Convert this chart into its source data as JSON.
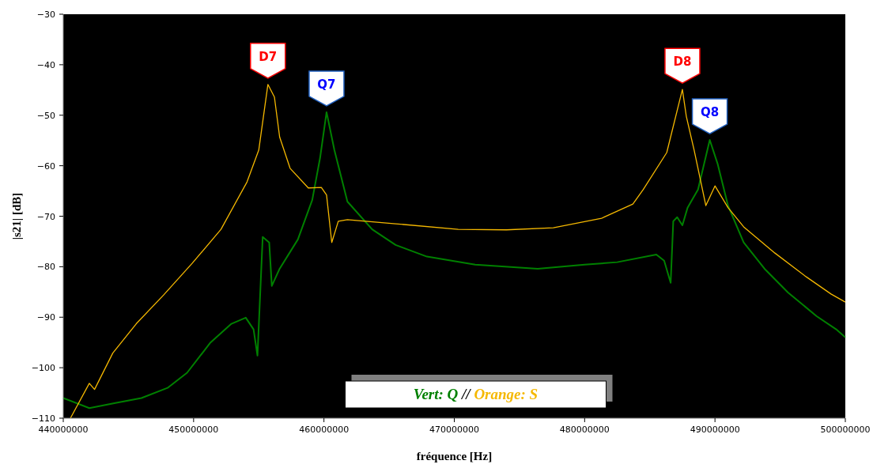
{
  "chart_data": {
    "type": "line",
    "xlabel": "fréquence [Hz]",
    "ylabel": "|s21| [dB]",
    "xlim": [
      440000000,
      500000000
    ],
    "ylim": [
      -110,
      -30
    ],
    "xticks": [
      440000000,
      450000000,
      460000000,
      470000000,
      480000000,
      490000000,
      500000000
    ],
    "yticks": [
      -110,
      -100,
      -90,
      -80,
      -70,
      -60,
      -50,
      -40,
      -30
    ],
    "grid": false,
    "legend": "bottom",
    "line_style": "solid",
    "series": [
      {
        "name": "Vert: Q",
        "color": "#008000",
        "x": [
          440000000,
          442000000,
          444000000,
          446000000,
          448000000,
          449500000,
          451300000,
          452900000,
          454000000,
          454600000,
          454900000,
          455300000,
          455800000,
          456000000,
          456600000,
          458000000,
          459100000,
          459700000,
          460200000,
          460800000,
          461800000,
          463700000,
          465500000,
          467900000,
          471600000,
          476400000,
          480000000,
          482500000,
          485500000,
          486100000,
          486600000,
          486800000,
          487100000,
          487500000,
          487900000,
          488700000,
          489600000,
          490200000,
          491000000,
          492200000,
          493800000,
          495600000,
          497800000,
          499300000,
          500000000
        ],
        "values": [
          -106,
          -108,
          -107,
          -106,
          -104,
          -101,
          -95,
          -91.3,
          -90.1,
          -92.4,
          -97.6,
          -74.1,
          -75.2,
          -83.8,
          -80.4,
          -74.6,
          -66.8,
          -58.5,
          -49.4,
          -56.9,
          -67.1,
          -72.6,
          -75.7,
          -78,
          -79.6,
          -80.4,
          -79.6,
          -79.1,
          -77.6,
          -78.8,
          -83.2,
          -71,
          -70.2,
          -71.8,
          -68.3,
          -64.7,
          -54.9,
          -59.6,
          -67.9,
          -75.2,
          -80.4,
          -85.1,
          -89.8,
          -92.4,
          -94
        ]
      },
      {
        "name": "Orange: S",
        "color": "#f5b800",
        "x": [
          440550000,
          442000000,
          442400000,
          443800000,
          445600000,
          447700000,
          449900000,
          452100000,
          454100000,
          455000000,
          455700000,
          456200000,
          456600000,
          457400000,
          458800000,
          459800000,
          460200000,
          460600000,
          461100000,
          461800000,
          465500000,
          470300000,
          474000000,
          477600000,
          481300000,
          483700000,
          484500000,
          486300000,
          487500000,
          487800000,
          488400000,
          489300000,
          490000000,
          491000000,
          492200000,
          494600000,
          497000000,
          498900000,
          500000000
        ],
        "values": [
          -110,
          -103.1,
          -104.3,
          -97.1,
          -91.3,
          -85.6,
          -79.3,
          -72.6,
          -63.2,
          -56.9,
          -43.9,
          -46.4,
          -54.3,
          -60.5,
          -64.4,
          -64.3,
          -65.8,
          -75.2,
          -71,
          -70.7,
          -71.5,
          -72.6,
          -72.7,
          -72.3,
          -70.4,
          -67.6,
          -64.7,
          -57.4,
          -44.9,
          -50.2,
          -56.9,
          -67.9,
          -64,
          -68.3,
          -72.1,
          -77.3,
          -82,
          -85.4,
          -87
        ]
      }
    ],
    "annotations": [
      {
        "text": "D7",
        "x": 455700000,
        "y": -43.9
      },
      {
        "text": "Q7",
        "x": 460200000,
        "y": -49.4
      },
      {
        "text": "D8",
        "x": 487500000,
        "y": -44.9
      },
      {
        "text": "Q8",
        "x": 489600000,
        "y": -54.9
      },
      "//"
    ]
  }
}
